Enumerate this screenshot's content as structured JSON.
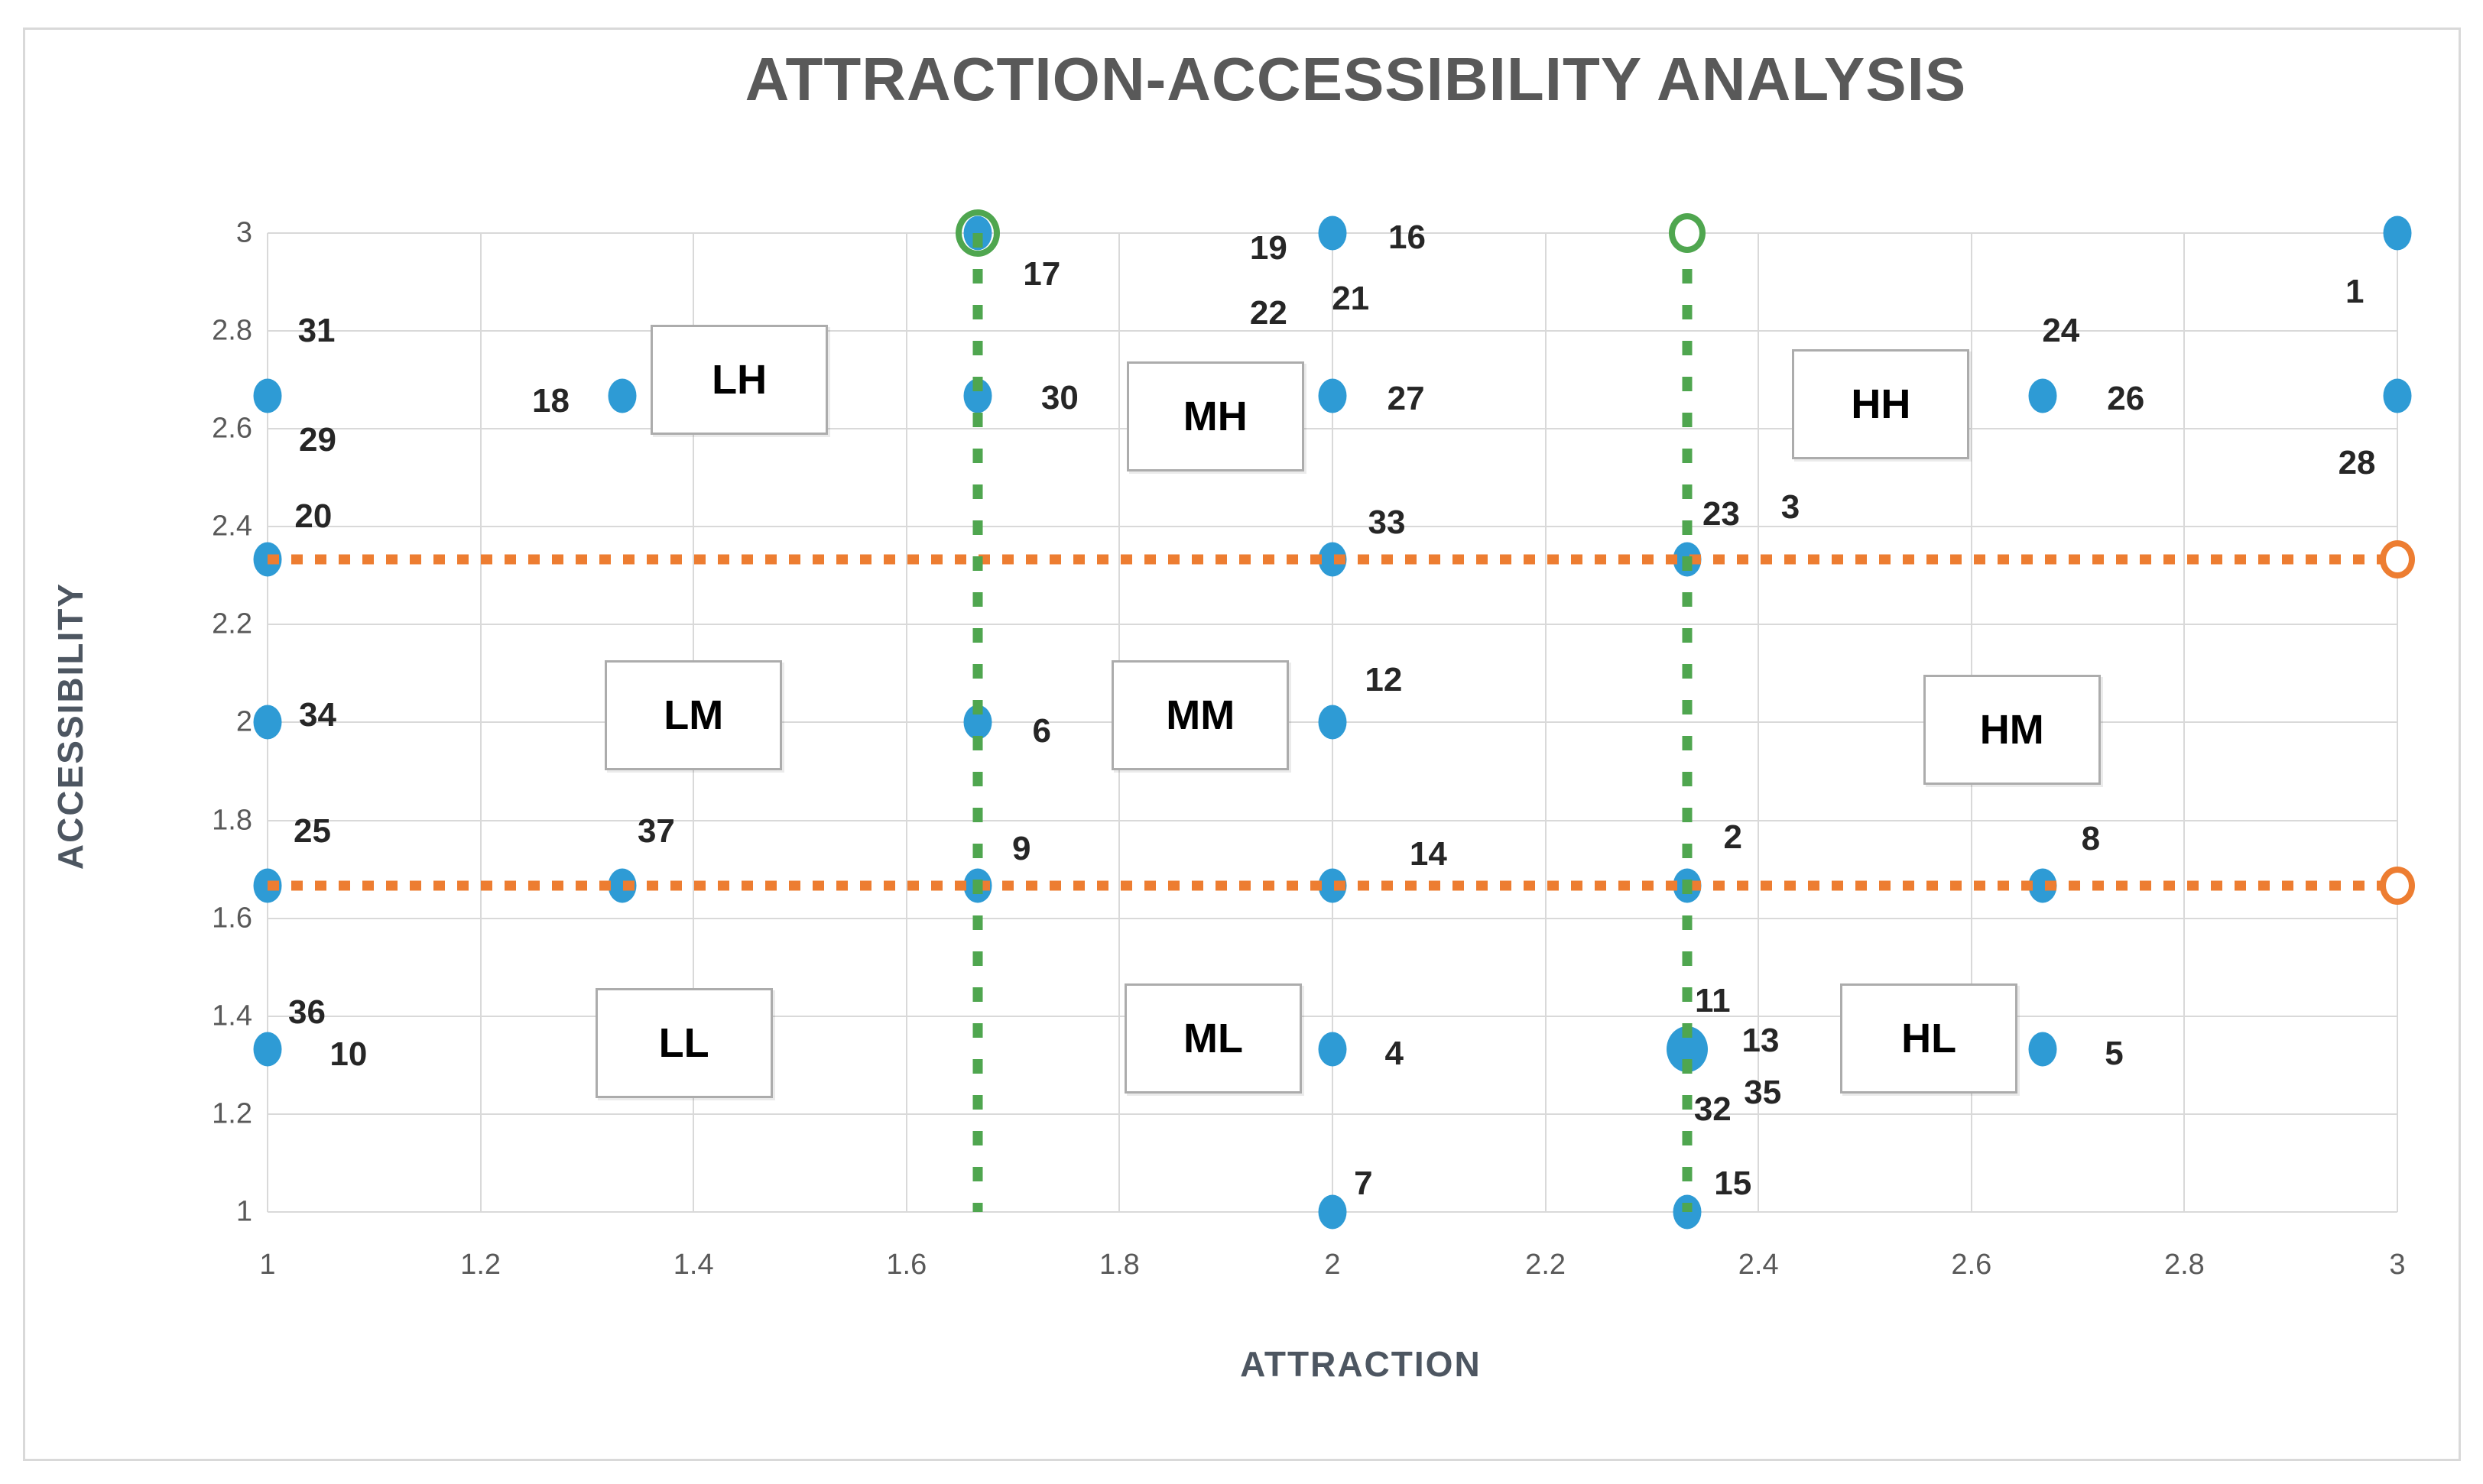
{
  "title": "ATTRACTION-ACCESSIBILITY ANALYSIS",
  "colors": {
    "point_blue": "#2e9bd5",
    "guide_orange": "#ed7d31",
    "guide_green": "#4fa64f",
    "gridline": "#d9d9d9",
    "tick_text": "#595959",
    "title_text": "#595959",
    "axis_title_text": "#4d5661",
    "data_label_text": "#262626",
    "zone_border": "#acacac"
  },
  "chart_data": {
    "type": "scatter",
    "title": "ATTRACTION-ACCESSIBILITY ANALYSIS",
    "xlabel": "ATTRACTION",
    "ylabel": "ACCESSIBILITY",
    "xlim": [
      1,
      3
    ],
    "ylim": [
      1,
      3
    ],
    "grid": true,
    "x_ticks": [
      "1",
      "1.2",
      "1.4",
      "1.6",
      "1.8",
      "2",
      "2.2",
      "2.4",
      "2.6",
      "2.8",
      "3"
    ],
    "y_ticks": [
      "3",
      "2.8",
      "2.6",
      "2.4",
      "2.2",
      "2",
      "1.8",
      "1.6",
      "1.4",
      "1.2",
      "1"
    ],
    "markers": [
      {
        "x": 1.0,
        "y": 2.667,
        "variant": "blue"
      },
      {
        "x": 1.0,
        "y": 2.333,
        "variant": "blue"
      },
      {
        "x": 1.0,
        "y": 2.0,
        "variant": "blue"
      },
      {
        "x": 1.0,
        "y": 1.667,
        "variant": "blue"
      },
      {
        "x": 1.0,
        "y": 1.333,
        "variant": "blue"
      },
      {
        "x": 1.333,
        "y": 2.667,
        "variant": "blue"
      },
      {
        "x": 1.333,
        "y": 1.667,
        "variant": "blue"
      },
      {
        "x": 1.667,
        "y": 3.0,
        "variant": "green-ring"
      },
      {
        "x": 1.667,
        "y": 2.667,
        "variant": "blue"
      },
      {
        "x": 1.667,
        "y": 2.0,
        "variant": "blue"
      },
      {
        "x": 1.667,
        "y": 1.667,
        "variant": "blue"
      },
      {
        "x": 2.0,
        "y": 3.0,
        "variant": "blue"
      },
      {
        "x": 2.0,
        "y": 2.667,
        "variant": "blue"
      },
      {
        "x": 2.0,
        "y": 2.333,
        "variant": "blue"
      },
      {
        "x": 2.0,
        "y": 2.0,
        "variant": "blue"
      },
      {
        "x": 2.0,
        "y": 1.667,
        "variant": "blue"
      },
      {
        "x": 2.0,
        "y": 1.333,
        "variant": "blue"
      },
      {
        "x": 2.0,
        "y": 1.0,
        "variant": "blue"
      },
      {
        "x": 2.333,
        "y": 3.0,
        "variant": "green-open"
      },
      {
        "x": 2.333,
        "y": 2.333,
        "variant": "blue"
      },
      {
        "x": 2.333,
        "y": 1.667,
        "variant": "blue"
      },
      {
        "x": 2.333,
        "y": 1.333,
        "variant": "blue-large"
      },
      {
        "x": 2.333,
        "y": 1.0,
        "variant": "blue"
      },
      {
        "x": 2.667,
        "y": 2.667,
        "variant": "blue"
      },
      {
        "x": 2.667,
        "y": 1.667,
        "variant": "blue"
      },
      {
        "x": 2.667,
        "y": 1.333,
        "variant": "blue"
      },
      {
        "x": 3.0,
        "y": 3.0,
        "variant": "blue"
      },
      {
        "x": 3.0,
        "y": 2.667,
        "variant": "blue"
      },
      {
        "x": 3.0,
        "y": 2.333,
        "variant": "orange-open"
      },
      {
        "x": 3.0,
        "y": 1.667,
        "variant": "orange-open"
      }
    ],
    "point_labels": [
      {
        "text": "1",
        "x": 2.96,
        "y": 2.88
      },
      {
        "text": "2",
        "x": 2.376,
        "y": 1.765
      },
      {
        "text": "3",
        "x": 2.43,
        "y": 2.44
      },
      {
        "text": "4",
        "x": 2.058,
        "y": 1.323
      },
      {
        "text": "5",
        "x": 2.734,
        "y": 1.323
      },
      {
        "text": "6",
        "x": 1.727,
        "y": 1.982
      },
      {
        "text": "7",
        "x": 2.029,
        "y": 1.058
      },
      {
        "text": "8",
        "x": 2.712,
        "y": 1.762
      },
      {
        "text": "9",
        "x": 1.708,
        "y": 1.742
      },
      {
        "text": "10",
        "x": 1.076,
        "y": 1.321
      },
      {
        "text": "11",
        "x": 2.357,
        "y": 1.431
      },
      {
        "text": "12",
        "x": 2.048,
        "y": 2.086
      },
      {
        "text": "13",
        "x": 2.402,
        "y": 1.35
      },
      {
        "text": "14",
        "x": 2.09,
        "y": 1.73
      },
      {
        "text": "15",
        "x": 2.376,
        "y": 1.058
      },
      {
        "text": "16",
        "x": 2.07,
        "y": 2.99
      },
      {
        "text": "17",
        "x": 1.727,
        "y": 2.915
      },
      {
        "text": "18",
        "x": 1.266,
        "y": 2.656
      },
      {
        "text": "19",
        "x": 1.94,
        "y": 2.968
      },
      {
        "text": "20",
        "x": 1.043,
        "y": 2.42
      },
      {
        "text": "21",
        "x": 2.017,
        "y": 2.866
      },
      {
        "text": "22",
        "x": 1.94,
        "y": 2.836
      },
      {
        "text": "23",
        "x": 2.365,
        "y": 2.425
      },
      {
        "text": "24",
        "x": 2.684,
        "y": 2.8
      },
      {
        "text": "25",
        "x": 1.042,
        "y": 1.777
      },
      {
        "text": "26",
        "x": 2.745,
        "y": 2.661
      },
      {
        "text": "27",
        "x": 2.069,
        "y": 2.661
      },
      {
        "text": "28",
        "x": 2.962,
        "y": 2.53
      },
      {
        "text": "29",
        "x": 1.047,
        "y": 2.577
      },
      {
        "text": "30",
        "x": 1.744,
        "y": 2.663
      },
      {
        "text": "31",
        "x": 1.046,
        "y": 2.8
      },
      {
        "text": "32",
        "x": 2.357,
        "y": 1.209
      },
      {
        "text": "33",
        "x": 2.051,
        "y": 2.408
      },
      {
        "text": "34",
        "x": 1.047,
        "y": 2.015
      },
      {
        "text": "35",
        "x": 2.404,
        "y": 1.244
      },
      {
        "text": "36",
        "x": 1.037,
        "y": 1.408
      },
      {
        "text": "37",
        "x": 1.365,
        "y": 1.777
      }
    ],
    "zones": [
      {
        "label": "LH",
        "x": 1.443,
        "y": 2.7
      },
      {
        "label": "MH",
        "x": 1.89,
        "y": 2.625
      },
      {
        "label": "HH",
        "x": 2.515,
        "y": 2.65
      },
      {
        "label": "LM",
        "x": 1.4,
        "y": 2.015
      },
      {
        "label": "MM",
        "x": 1.876,
        "y": 2.015
      },
      {
        "label": "HM",
        "x": 2.638,
        "y": 1.985
      },
      {
        "label": "LL",
        "x": 1.391,
        "y": 1.345
      },
      {
        "label": "ML",
        "x": 1.888,
        "y": 1.355
      },
      {
        "label": "HL",
        "x": 2.56,
        "y": 1.355
      }
    ],
    "guide_lines": {
      "horizontal_orange": [
        {
          "y": 2.333,
          "x1": 1.0,
          "x2": 3.0
        },
        {
          "y": 1.667,
          "x1": 1.0,
          "x2": 3.0
        }
      ],
      "vertical_green": [
        {
          "x": 1.667,
          "y1": 3.0,
          "y2": 1.0
        },
        {
          "x": 2.333,
          "y1": 3.0,
          "y2": 1.0
        }
      ]
    }
  }
}
